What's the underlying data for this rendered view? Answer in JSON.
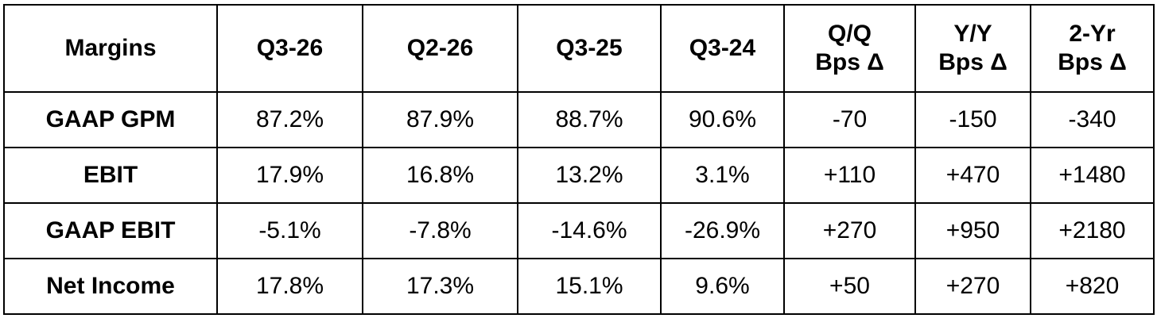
{
  "table": {
    "header": [
      "Margins",
      "Q3-26",
      "Q2-26",
      "Q3-25",
      "Q3-24",
      "Q/Q\nBps Δ",
      "Y/Y\nBps Δ",
      "2-Yr\nBps Δ"
    ],
    "rows": [
      [
        "GAAP GPM",
        "87.2%",
        "87.9%",
        "88.7%",
        "90.6%",
        "-70",
        "-150",
        "-340"
      ],
      [
        "EBIT",
        "17.9%",
        "16.8%",
        "13.2%",
        "3.1%",
        "+110",
        "+470",
        "+1480"
      ],
      [
        "GAAP EBIT",
        "-5.1%",
        "-7.8%",
        "-14.6%",
        "-26.9%",
        "+270",
        "+950",
        "+2180"
      ],
      [
        "Net Income",
        "17.8%",
        "17.3%",
        "15.1%",
        "9.6%",
        "+50",
        "+270",
        "+820"
      ]
    ]
  }
}
